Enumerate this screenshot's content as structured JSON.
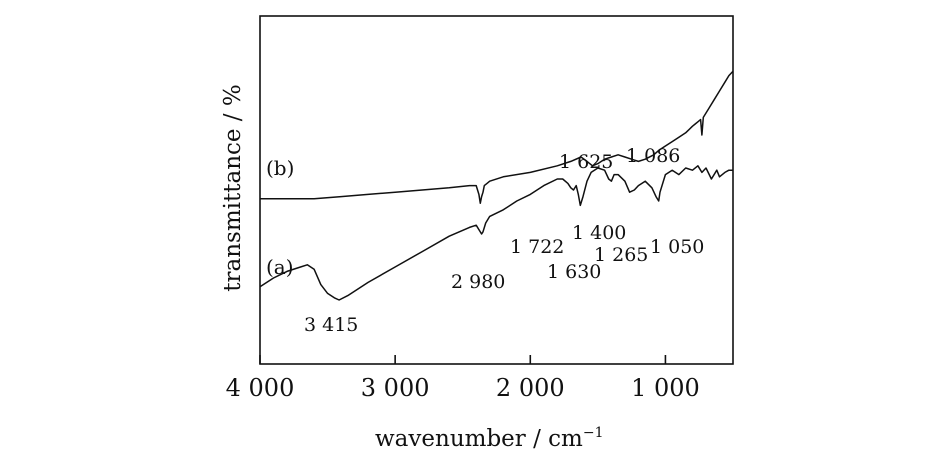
{
  "chart_data": {
    "type": "line",
    "xlabel": "wavenumber / cm",
    "xlabel_sup": "−1",
    "ylabel": "transmittance / %",
    "x_reversed": true,
    "xlim": [
      4000,
      500
    ],
    "x_ticks": [
      4000,
      3000,
      2000,
      1000
    ],
    "x_tick_labels": [
      "4 000",
      "3 000",
      "2 000",
      "1 000"
    ],
    "y_ticks_shown": false,
    "grid": false,
    "series": [
      {
        "name": "(a)",
        "x": [
          4000,
          3900,
          3800,
          3700,
          3650,
          3600,
          3550,
          3500,
          3450,
          3415,
          3350,
          3200,
          3000,
          2800,
          2600,
          2450,
          2400,
          2380,
          2360,
          2350,
          2330,
          2300,
          2200,
          2100,
          2000,
          1900,
          1800,
          1760,
          1722,
          1700,
          1680,
          1660,
          1645,
          1630,
          1610,
          1580,
          1550,
          1500,
          1450,
          1420,
          1400,
          1380,
          1350,
          1300,
          1265,
          1230,
          1200,
          1150,
          1100,
          1070,
          1050,
          1040,
          1000,
          950,
          900,
          850,
          800,
          760,
          730,
          700,
          660,
          620,
          600,
          560,
          530,
          500
        ],
        "y": [
          0.31,
          0.35,
          0.38,
          0.4,
          0.41,
          0.39,
          0.32,
          0.28,
          0.26,
          0.25,
          0.27,
          0.33,
          0.4,
          0.47,
          0.54,
          0.58,
          0.59,
          0.57,
          0.55,
          0.56,
          0.6,
          0.63,
          0.66,
          0.7,
          0.73,
          0.77,
          0.8,
          0.8,
          0.78,
          0.76,
          0.75,
          0.77,
          0.73,
          0.68,
          0.72,
          0.79,
          0.83,
          0.85,
          0.84,
          0.8,
          0.79,
          0.82,
          0.82,
          0.79,
          0.74,
          0.75,
          0.77,
          0.79,
          0.76,
          0.72,
          0.7,
          0.74,
          0.82,
          0.84,
          0.82,
          0.85,
          0.84,
          0.86,
          0.83,
          0.85,
          0.8,
          0.84,
          0.81,
          0.83,
          0.84,
          0.84
        ]
      },
      {
        "name": "(b)",
        "x": [
          4000,
          3800,
          3600,
          3400,
          3200,
          3000,
          2800,
          2600,
          2450,
          2400,
          2380,
          2370,
          2360,
          2350,
          2340,
          2320,
          2300,
          2200,
          2000,
          1800,
          1700,
          1625,
          1580,
          1540,
          1500,
          1450,
          1400,
          1350,
          1300,
          1250,
          1200,
          1150,
          1086,
          1050,
          1000,
          950,
          900,
          850,
          800,
          780,
          760,
          740,
          730,
          720,
          700,
          680,
          640,
          600,
          560,
          530,
          500
        ],
        "y": [
          0.71,
          0.71,
          0.71,
          0.72,
          0.73,
          0.74,
          0.75,
          0.76,
          0.77,
          0.77,
          0.73,
          0.69,
          0.72,
          0.74,
          0.77,
          0.78,
          0.79,
          0.81,
          0.83,
          0.86,
          0.88,
          0.9,
          0.88,
          0.86,
          0.87,
          0.89,
          0.9,
          0.91,
          0.9,
          0.89,
          0.88,
          0.89,
          0.91,
          0.93,
          0.95,
          0.97,
          0.99,
          1.01,
          1.04,
          1.05,
          1.06,
          1.07,
          1.0,
          1.08,
          1.1,
          1.12,
          1.16,
          1.2,
          1.24,
          1.27,
          1.29
        ]
      }
    ],
    "annotations": [
      {
        "text": "3 415",
        "series": "(a)"
      },
      {
        "text": "2 980",
        "series": "(a)"
      },
      {
        "text": "1 722",
        "series": "(a)"
      },
      {
        "text": "1 630",
        "series": "(a)"
      },
      {
        "text": "1 400",
        "series": "(a)"
      },
      {
        "text": "1 265",
        "series": "(a)"
      },
      {
        "text": "1 050",
        "series": "(a)"
      },
      {
        "text": "1 625",
        "series": "(b)"
      },
      {
        "text": "1 086",
        "series": "(b)"
      }
    ]
  }
}
